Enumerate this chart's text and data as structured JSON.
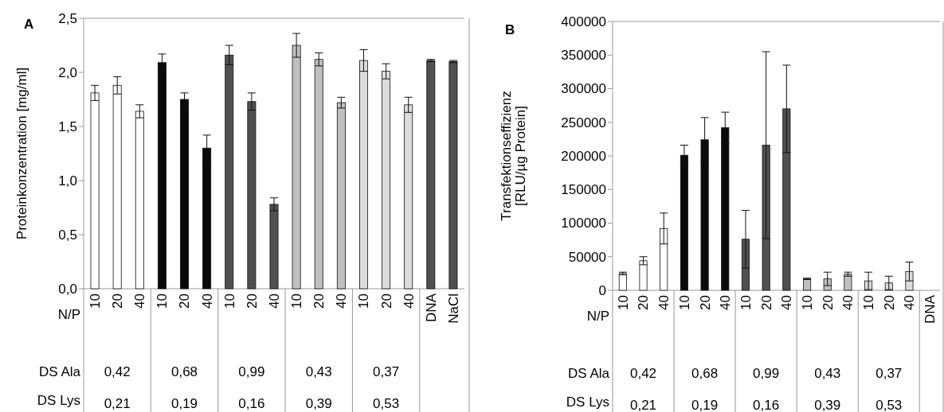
{
  "chart_data": [
    {
      "type": "bar",
      "title": "A",
      "ylabel": "Proteinkonzentration [mg/ml]",
      "categories": [
        "10",
        "20",
        "40",
        "10",
        "20",
        "40",
        "10",
        "20",
        "40",
        "10",
        "20",
        "40",
        "10",
        "20",
        "40",
        "DNA",
        "NaCl"
      ],
      "values": [
        1.81,
        1.88,
        1.64,
        2.09,
        1.75,
        1.3,
        2.16,
        1.73,
        0.78,
        2.25,
        2.12,
        1.72,
        2.11,
        2.01,
        1.7,
        2.11,
        2.1
      ],
      "errors": [
        0.07,
        0.08,
        0.06,
        0.08,
        0.06,
        0.12,
        0.09,
        0.08,
        0.06,
        0.11,
        0.06,
        0.05,
        0.1,
        0.07,
        0.07,
        0.01,
        0.01
      ],
      "colors": [
        "#ffffff",
        "#ffffff",
        "#ffffff",
        "#0a0a0a",
        "#0a0a0a",
        "#0a0a0a",
        "#505050",
        "#505050",
        "#505050",
        "#c0c0c0",
        "#c0c0c0",
        "#c0c0c0",
        "#dcdcdc",
        "#dcdcdc",
        "#dcdcdc",
        "#505050",
        "#505050"
      ],
      "ylim": [
        0,
        2.5
      ],
      "yticks": [
        {
          "value": 0,
          "label": "0,0"
        },
        {
          "value": 0.5,
          "label": "0,5"
        },
        {
          "value": 1,
          "label": "1,0"
        },
        {
          "value": 1.5,
          "label": "1,5"
        },
        {
          "value": 2,
          "label": "2,0"
        },
        {
          "value": 2.5,
          "label": "2,5"
        }
      ],
      "annotations": [
        "N/P",
        "DS Ala",
        "DS Lys",
        "0,42",
        "0,68",
        "0,99",
        "0,43",
        "0,37",
        "0,21",
        "0,19",
        "0,16",
        "0,39",
        "0,53"
      ]
    },
    {
      "type": "bar",
      "title": "B",
      "ylabel": "Transfektionseffizienz\n[RLU/µg Protein]",
      "categories": [
        "10",
        "20",
        "40",
        "10",
        "20",
        "40",
        "10",
        "20",
        "40",
        "10",
        "20",
        "40",
        "10",
        "20",
        "40",
        "DNA"
      ],
      "values": [
        25000,
        44000,
        92000,
        201000,
        224000,
        242000,
        76000,
        216000,
        270000,
        17000,
        17000,
        24000,
        14000,
        11000,
        28000,
        0
      ],
      "errors": [
        2000,
        6000,
        23000,
        15000,
        33000,
        23000,
        43000,
        139000,
        65000,
        1000,
        10000,
        3000,
        13000,
        10000,
        14000,
        null
      ],
      "colors": [
        "#ffffff",
        "#ffffff",
        "#ffffff",
        "#0a0a0a",
        "#0a0a0a",
        "#0a0a0a",
        "#505050",
        "#505050",
        "#505050",
        "#c0c0c0",
        "#c0c0c0",
        "#c0c0c0",
        "#dcdcdc",
        "#dcdcdc",
        "#dcdcdc",
        "#505050"
      ],
      "ylim": [
        0,
        400000
      ],
      "yticks": [
        0,
        50000,
        100000,
        150000,
        200000,
        250000,
        300000,
        350000,
        400000
      ],
      "annotations": [
        "N/P",
        "DS Ala",
        "DS Lys",
        "0,42",
        "0,68",
        "0,99",
        "0,43",
        "0,37",
        "0,21",
        "0,19",
        "0,16",
        "0,39",
        "0,53"
      ]
    }
  ]
}
